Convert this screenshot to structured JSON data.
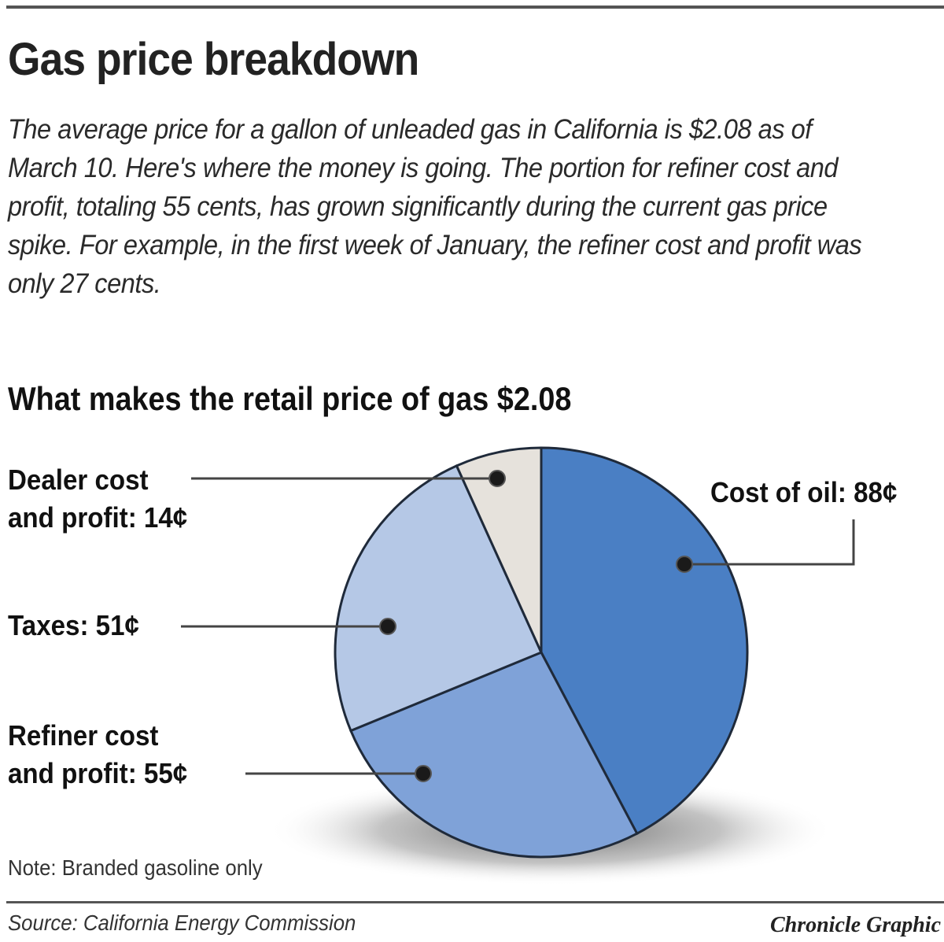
{
  "header": {
    "title": "Gas price breakdown",
    "intro": "The average price for a gallon of unleaded gas in California is $2.08 as of March 10. Here's where the money is going. The portion for refiner cost and profit, totaling 55 cents, has grown significantly during the current gas price spike. For example, in the first week of January, the refiner cost and profit was only 27 cents."
  },
  "chart": {
    "subtitle": "What makes the retail price of gas $2.08",
    "labels": {
      "dealer_1": "Dealer cost",
      "dealer_2": "and profit: 14¢",
      "oil": "Cost of oil: 88¢",
      "taxes": "Taxes: 51¢",
      "refiner_1": "Refiner cost",
      "refiner_2": "and profit: 55¢"
    },
    "note": "Note: Branded gasoline only"
  },
  "footer": {
    "source": "Source: California Energy Commission",
    "credit": "Chronicle Graphic"
  },
  "colors": {
    "oil": "#4a7fc4",
    "refiner": "#7fa2d8",
    "taxes": "#b5c8e6",
    "dealer": "#e6e2dc"
  },
  "chart_data": {
    "type": "pie",
    "title": "What makes the retail price of gas $2.08",
    "categories": [
      "Cost of oil",
      "Refiner cost and profit",
      "Taxes",
      "Dealer cost and profit"
    ],
    "values": [
      88,
      55,
      51,
      14
    ],
    "unit": "cents",
    "total": 208,
    "colors": [
      "#4a7fc4",
      "#7fa2d8",
      "#b5c8e6",
      "#e6e2dc"
    ],
    "start_angle": "12 o'clock, clockwise",
    "annotations": [
      "Note: Branded gasoline only",
      "Source: California Energy Commission"
    ]
  }
}
